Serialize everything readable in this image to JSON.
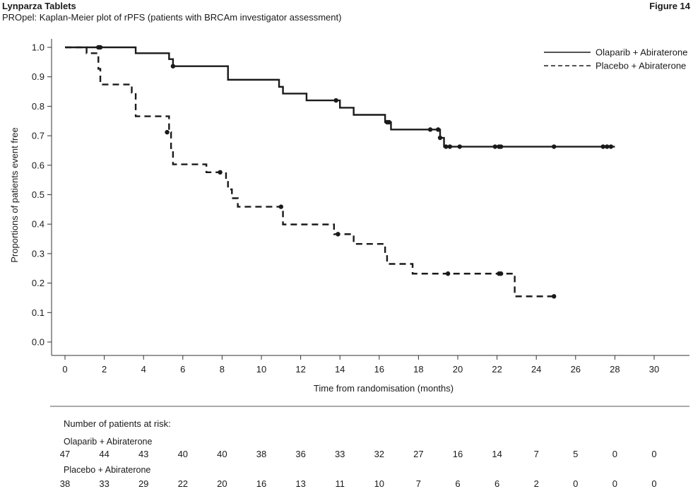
{
  "header": {
    "product": "Lynparza Tablets",
    "figure": "Figure 14",
    "subtitle": "PROpel: Kaplan-Meier plot of rPFS (patients with BRCAm investigator assessment)"
  },
  "chart_data": {
    "type": "line",
    "xlabel": "Time from randomisation (months)",
    "ylabel": "Proportions of patients event free",
    "xlim": [
      0,
      30
    ],
    "ylim": [
      0,
      1
    ],
    "x_ticks": [
      0,
      2,
      4,
      6,
      8,
      10,
      12,
      14,
      16,
      18,
      20,
      22,
      24,
      26,
      28,
      30
    ],
    "y_ticks": [
      0.0,
      0.1,
      0.2,
      0.3,
      0.4,
      0.5,
      0.6,
      0.7,
      0.8,
      0.9,
      1.0
    ],
    "y_tick_labels": [
      "0.0",
      "0.1",
      "0.2",
      "0.3",
      "0.4",
      "0.5",
      "0.6",
      "0.7",
      "0.8",
      "0.9",
      "1.0"
    ],
    "grid": false,
    "legend_position": "top-right",
    "series": [
      {
        "name": "Olaparib + Abiraterone",
        "style": "solid",
        "color": "#1a1a1a",
        "steps": [
          [
            0,
            1.0
          ],
          [
            3.6,
            0.98
          ],
          [
            5.3,
            0.96
          ],
          [
            5.5,
            0.936
          ],
          [
            8.3,
            0.89
          ],
          [
            10.9,
            0.866
          ],
          [
            11.1,
            0.843
          ],
          [
            12.3,
            0.82
          ],
          [
            14.0,
            0.795
          ],
          [
            14.7,
            0.771
          ],
          [
            16.3,
            0.746
          ],
          [
            16.6,
            0.721
          ],
          [
            19.1,
            0.693
          ],
          [
            19.3,
            0.663
          ],
          [
            28.0,
            0.663
          ]
        ],
        "censored": [
          [
            1.8,
            1.0
          ],
          [
            5.5,
            0.936
          ],
          [
            13.8,
            0.82
          ],
          [
            16.4,
            0.746
          ],
          [
            16.5,
            0.746
          ],
          [
            18.6,
            0.721
          ],
          [
            19.0,
            0.721
          ],
          [
            19.1,
            0.693
          ],
          [
            19.4,
            0.663
          ],
          [
            19.6,
            0.663
          ],
          [
            20.1,
            0.663
          ],
          [
            21.9,
            0.663
          ],
          [
            22.1,
            0.663
          ],
          [
            22.2,
            0.663
          ],
          [
            24.9,
            0.663
          ],
          [
            27.4,
            0.663
          ],
          [
            27.6,
            0.663
          ],
          [
            27.8,
            0.663
          ]
        ]
      },
      {
        "name": "Placebo + Abiraterone",
        "style": "dashed",
        "color": "#1a1a1a",
        "steps": [
          [
            0,
            1.0
          ],
          [
            1.1,
            0.98
          ],
          [
            1.7,
            0.927
          ],
          [
            1.8,
            0.874
          ],
          [
            3.4,
            0.846
          ],
          [
            3.6,
            0.766
          ],
          [
            5.3,
            0.712
          ],
          [
            5.4,
            0.658
          ],
          [
            5.5,
            0.603
          ],
          [
            7.2,
            0.576
          ],
          [
            8.2,
            0.548
          ],
          [
            8.3,
            0.518
          ],
          [
            8.5,
            0.488
          ],
          [
            8.8,
            0.459
          ],
          [
            11.1,
            0.399
          ],
          [
            13.7,
            0.366
          ],
          [
            14.7,
            0.333
          ],
          [
            16.3,
            0.298
          ],
          [
            16.4,
            0.265
          ],
          [
            17.7,
            0.232
          ],
          [
            22.9,
            0.155
          ],
          [
            24.9,
            0.155
          ]
        ],
        "censored": [
          [
            1.7,
            1.0
          ],
          [
            5.2,
            0.712
          ],
          [
            7.9,
            0.576
          ],
          [
            11.0,
            0.459
          ],
          [
            13.9,
            0.366
          ],
          [
            19.5,
            0.232
          ],
          [
            22.1,
            0.232
          ],
          [
            22.2,
            0.232
          ],
          [
            24.9,
            0.155
          ]
        ]
      }
    ]
  },
  "risk_table": {
    "title": "Number of patients at risk:",
    "time_points": [
      0,
      2,
      4,
      6,
      8,
      10,
      12,
      14,
      16,
      18,
      20,
      22,
      24,
      26,
      28,
      30
    ],
    "rows": [
      {
        "label": "Olaparib + Abiraterone",
        "values": [
          "47",
          "44",
          "43",
          "40",
          "40",
          "38",
          "36",
          "33",
          "32",
          "27",
          "16",
          "14",
          "7",
          "5",
          "0",
          "0"
        ]
      },
      {
        "label": "Placebo + Abiraterone",
        "values": [
          "38",
          "33",
          "29",
          "22",
          "20",
          "16",
          "13",
          "11",
          "10",
          "7",
          "6",
          "6",
          "2",
          "0",
          "0",
          "0"
        ]
      }
    ]
  }
}
